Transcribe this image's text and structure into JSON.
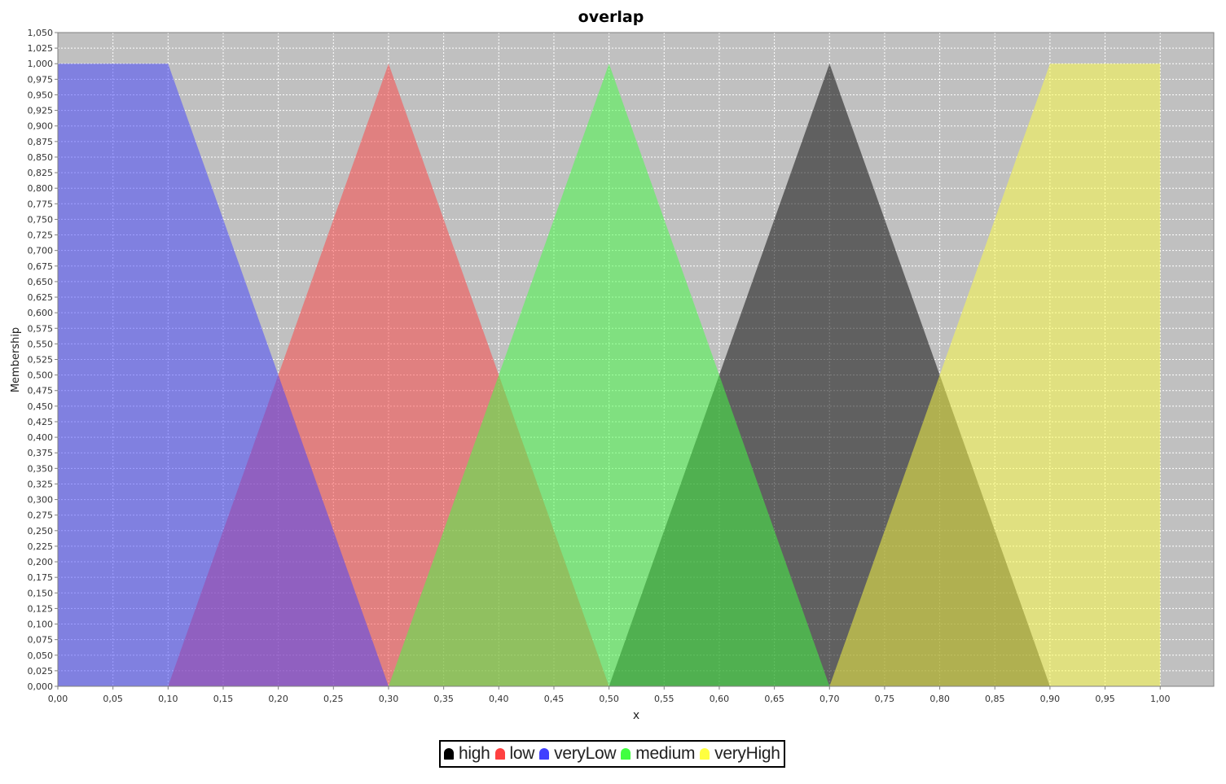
{
  "chart_data": {
    "type": "area",
    "title": "overlap",
    "xlabel": "x",
    "ylabel": "Membership",
    "xlim": [
      0,
      1.0486
    ],
    "ylim": [
      0,
      1.05
    ],
    "x_ticks": [
      "0,00",
      "0,05",
      "0,10",
      "0,15",
      "0,20",
      "0,25",
      "0,30",
      "0,35",
      "0,40",
      "0,45",
      "0,50",
      "0,55",
      "0,60",
      "0,65",
      "0,70",
      "0,75",
      "0,80",
      "0,85",
      "0,90",
      "0,95",
      "1,00"
    ],
    "y_ticks": [
      "0,000",
      "0,025",
      "0,050",
      "0,075",
      "0,100",
      "0,125",
      "0,150",
      "0,175",
      "0,200",
      "0,225",
      "0,250",
      "0,275",
      "0,300",
      "0,325",
      "0,350",
      "0,375",
      "0,400",
      "0,425",
      "0,450",
      "0,475",
      "0,500",
      "0,525",
      "0,550",
      "0,575",
      "0,600",
      "0,625",
      "0,650",
      "0,675",
      "0,700",
      "0,725",
      "0,750",
      "0,775",
      "0,800",
      "0,825",
      "0,850",
      "0,875",
      "0,900",
      "0,925",
      "0,950",
      "0,975",
      "1,000",
      "1,025",
      "1,050"
    ],
    "series": [
      {
        "name": "high",
        "color": "#000000",
        "opacity": 0.5,
        "points": [
          [
            0.5,
            0
          ],
          [
            0.7,
            1
          ],
          [
            0.9,
            0
          ]
        ]
      },
      {
        "name": "low",
        "color": "#ff4040",
        "opacity": 0.5,
        "points": [
          [
            0.1,
            0
          ],
          [
            0.3,
            1
          ],
          [
            0.5,
            0
          ]
        ]
      },
      {
        "name": "veryLow",
        "color": "#4040ff",
        "opacity": 0.5,
        "points": [
          [
            0,
            1
          ],
          [
            0.1,
            1
          ],
          [
            0.3,
            0
          ],
          [
            0,
            0
          ]
        ]
      },
      {
        "name": "medium",
        "color": "#40ff40",
        "opacity": 0.5,
        "points": [
          [
            0.3,
            0
          ],
          [
            0.5,
            1
          ],
          [
            0.7,
            0
          ]
        ]
      },
      {
        "name": "veryHigh",
        "color": "#ffff40",
        "opacity": 0.5,
        "points": [
          [
            0.7,
            0
          ],
          [
            0.9,
            1
          ],
          [
            1.0,
            1
          ],
          [
            1.0,
            0
          ]
        ]
      }
    ],
    "legend_position": "bottom"
  }
}
